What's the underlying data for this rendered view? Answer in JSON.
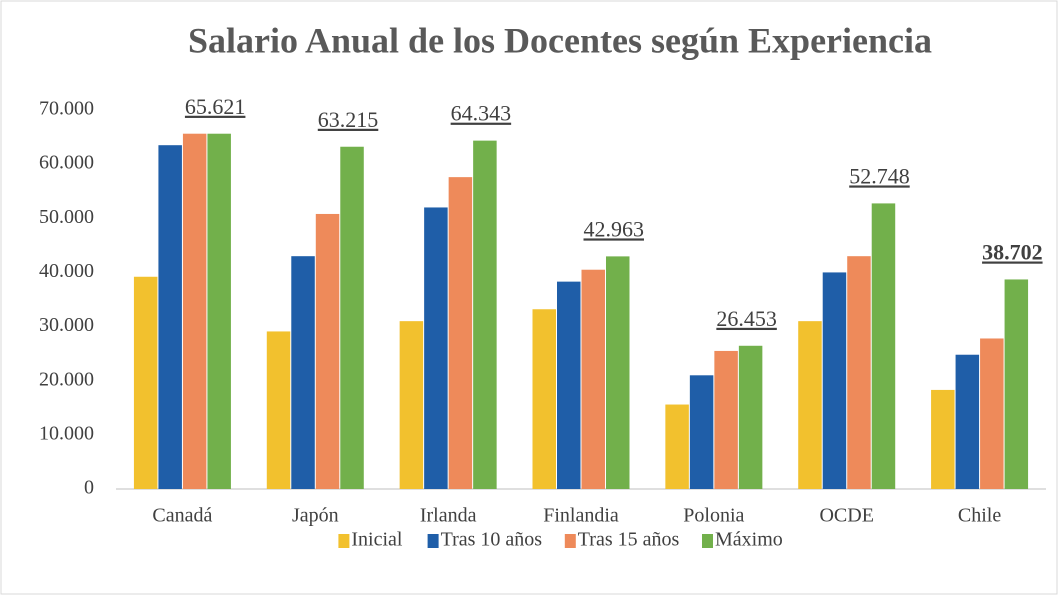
{
  "chart_data": {
    "type": "bar",
    "title": "Salario Anual de los Docentes según Experiencia",
    "categories": [
      "Canadá",
      "Japón",
      "Irlanda",
      "Finlandia",
      "Polonia",
      "OCDE",
      "Chile"
    ],
    "series": [
      {
        "name": "Inicial",
        "color": "#f2c12e",
        "values": [
          39200,
          29100,
          31000,
          33200,
          15600,
          31000,
          18300
        ]
      },
      {
        "name": "Tras 10 años",
        "color": "#1f5ea8",
        "values": [
          63500,
          43000,
          52000,
          38300,
          21000,
          40000,
          24800
        ]
      },
      {
        "name": "Tras 15 años",
        "color": "#ee8a5a",
        "values": [
          65621,
          50800,
          57600,
          40500,
          25500,
          43000,
          27800
        ]
      },
      {
        "name": "Máximo",
        "color": "#72b04b",
        "values": [
          65621,
          63215,
          64343,
          42963,
          26453,
          52748,
          38702
        ],
        "value_labels": [
          "65.621",
          "63.215",
          "64.343",
          "42.963",
          "26.453",
          "52.748",
          "38.702"
        ]
      }
    ],
    "ylim": [
      0,
      70000
    ],
    "yticks": [
      0,
      {
        "value": 10000,
        "label": "10.000"
      },
      {
        "value": 20000,
        "label": "20.000"
      },
      {
        "value": 30000,
        "label": "30.000"
      },
      {
        "value": 40000,
        "label": "40.000"
      },
      {
        "value": 50000,
        "label": "50.000"
      },
      {
        "value": 60000,
        "label": "60.000"
      },
      {
        "value": 70000,
        "label": "70.000"
      }
    ],
    "grid": false,
    "legend": "bottom"
  }
}
